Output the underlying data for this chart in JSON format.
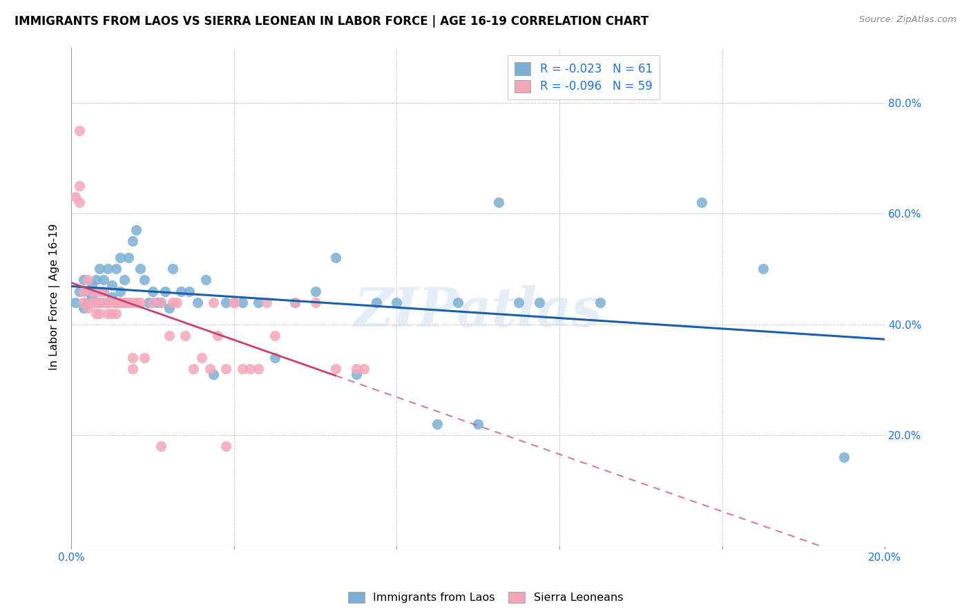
{
  "title": "IMMIGRANTS FROM LAOS VS SIERRA LEONEAN IN LABOR FORCE | AGE 16-19 CORRELATION CHART",
  "source": "Source: ZipAtlas.com",
  "ylabel": "In Labor Force | Age 16-19",
  "xlim": [
    0.0,
    0.2
  ],
  "ylim": [
    0.0,
    0.9
  ],
  "color_blue": "#7bafd4",
  "color_pink": "#f4a7b9",
  "trendline_blue": "#1a5fa8",
  "trendline_pink": "#c94070",
  "watermark": "ZIPatlas",
  "legend_label_blue": "Immigrants from Laos",
  "legend_label_pink": "Sierra Leoneans",
  "legend_r_blue": "R = -0.023",
  "legend_n_blue": "N = 61",
  "legend_r_pink": "R = -0.096",
  "legend_n_pink": "N = 59",
  "blue_points_x": [
    0.001,
    0.002,
    0.003,
    0.003,
    0.004,
    0.004,
    0.005,
    0.005,
    0.006,
    0.006,
    0.007,
    0.007,
    0.008,
    0.008,
    0.009,
    0.009,
    0.01,
    0.01,
    0.011,
    0.011,
    0.012,
    0.012,
    0.013,
    0.013,
    0.014,
    0.015,
    0.016,
    0.017,
    0.018,
    0.019,
    0.02,
    0.021,
    0.022,
    0.023,
    0.024,
    0.025,
    0.027,
    0.029,
    0.031,
    0.033,
    0.035,
    0.038,
    0.042,
    0.046,
    0.05,
    0.055,
    0.06,
    0.065,
    0.07,
    0.075,
    0.08,
    0.09,
    0.095,
    0.1,
    0.105,
    0.11,
    0.115,
    0.13,
    0.155,
    0.17,
    0.19
  ],
  "blue_points_y": [
    0.44,
    0.46,
    0.43,
    0.48,
    0.44,
    0.46,
    0.45,
    0.47,
    0.44,
    0.48,
    0.5,
    0.44,
    0.46,
    0.48,
    0.44,
    0.5,
    0.45,
    0.47,
    0.5,
    0.44,
    0.52,
    0.46,
    0.44,
    0.48,
    0.52,
    0.55,
    0.57,
    0.5,
    0.48,
    0.44,
    0.46,
    0.44,
    0.44,
    0.46,
    0.43,
    0.5,
    0.46,
    0.46,
    0.44,
    0.48,
    0.31,
    0.44,
    0.44,
    0.44,
    0.34,
    0.44,
    0.46,
    0.52,
    0.31,
    0.44,
    0.44,
    0.22,
    0.44,
    0.22,
    0.62,
    0.44,
    0.44,
    0.44,
    0.62,
    0.5,
    0.16
  ],
  "pink_points_x": [
    0.001,
    0.002,
    0.002,
    0.003,
    0.003,
    0.004,
    0.004,
    0.005,
    0.005,
    0.006,
    0.006,
    0.007,
    0.007,
    0.007,
    0.008,
    0.008,
    0.009,
    0.009,
    0.01,
    0.01,
    0.011,
    0.011,
    0.012,
    0.012,
    0.013,
    0.014,
    0.015,
    0.015,
    0.016,
    0.017,
    0.018,
    0.02,
    0.022,
    0.024,
    0.026,
    0.028,
    0.03,
    0.032,
    0.034,
    0.036,
    0.038,
    0.04,
    0.044,
    0.046,
    0.048,
    0.05,
    0.055,
    0.06,
    0.065,
    0.07,
    0.072,
    0.025,
    0.035,
    0.04,
    0.042,
    0.002,
    0.015,
    0.022,
    0.038
  ],
  "pink_points_y": [
    0.63,
    0.62,
    0.65,
    0.44,
    0.46,
    0.43,
    0.48,
    0.44,
    0.46,
    0.42,
    0.44,
    0.46,
    0.44,
    0.42,
    0.44,
    0.46,
    0.42,
    0.44,
    0.44,
    0.42,
    0.44,
    0.42,
    0.44,
    0.44,
    0.44,
    0.44,
    0.44,
    0.34,
    0.44,
    0.44,
    0.34,
    0.44,
    0.44,
    0.38,
    0.44,
    0.38,
    0.32,
    0.34,
    0.32,
    0.38,
    0.32,
    0.44,
    0.32,
    0.32,
    0.44,
    0.38,
    0.44,
    0.44,
    0.32,
    0.32,
    0.32,
    0.44,
    0.44,
    0.44,
    0.32,
    0.75,
    0.32,
    0.18,
    0.18
  ]
}
